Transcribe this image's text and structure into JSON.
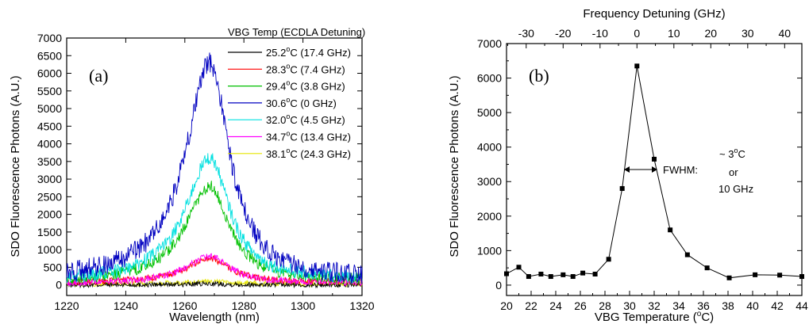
{
  "chart_data": [
    {
      "type": "line",
      "panel_label": "(a)",
      "xlabel": "Wavelength (nm)",
      "ylabel": "SDO Fluorescence Photons (A.U.)",
      "xlim": [
        1220,
        1320
      ],
      "ylim": [
        -300,
        7000
      ],
      "xticks": [
        "1220",
        "1240",
        "1260",
        "1280",
        "1300",
        "1320"
      ],
      "yticks": [
        "0",
        "500",
        "1000",
        "1500",
        "2000",
        "2500",
        "3000",
        "3500",
        "4000",
        "4500",
        "5000",
        "5500",
        "6000",
        "6500",
        "7000"
      ],
      "legend_title": "VBG Temp (ECDLA Detuning)",
      "legend_placement": "top-right",
      "grid": false,
      "series": [
        {
          "name": "25.2°C (17.4 GHz)",
          "temp": "25.2",
          "detuning": " (17.4 GHz)",
          "color": "#000000",
          "x": [
            1220,
            1268.5,
            1320
          ],
          "y": [
            0,
            30,
            0
          ]
        },
        {
          "name": "28.3°C (7.4 GHz)",
          "temp": "28.3",
          "detuning": " (7.4 GHz)",
          "color": "#ff0000",
          "x": [
            1220,
            1268.5,
            1320
          ],
          "y": [
            50,
            750,
            80
          ]
        },
        {
          "name": "29.4°C (3.8 GHz)",
          "temp": "29.4",
          "detuning": " (3.8 GHz)",
          "color": "#00c000",
          "x": [
            1220,
            1268.5,
            1320
          ],
          "y": [
            60,
            2800,
            100
          ]
        },
        {
          "name": "30.6°C (0 GHz)",
          "temp": "30.6",
          "detuning": " (0 GHz)",
          "color": "#0000c0",
          "x": [
            1220,
            1268.5,
            1320
          ],
          "y": [
            120,
            6300,
            150
          ]
        },
        {
          "name": "32.0°C (4.5 GHz)",
          "temp": "32.0",
          "detuning": " (4.5 GHz)",
          "color": "#00e0e0",
          "x": [
            1220,
            1268.5,
            1320
          ],
          "y": [
            80,
            3600,
            150
          ]
        },
        {
          "name": "34.7°C (13.4 GHz)",
          "temp": "34.7",
          "detuning": " (13.4 GHz)",
          "color": "#ff00ff",
          "x": [
            1220,
            1268.5,
            1320
          ],
          "y": [
            40,
            800,
            60
          ]
        },
        {
          "name": "38.1°C (24.3 GHz)",
          "temp": "38.1",
          "detuning": " (24.3 GHz)",
          "color": "#e6e600",
          "x": [
            1220,
            1268.5,
            1320
          ],
          "y": [
            20,
            100,
            30
          ]
        }
      ]
    },
    {
      "type": "line",
      "panel_label": "(b)",
      "xlabel": "VBG Temperature (°C)",
      "xlabel_main": "VBG Temperature (",
      "xlabel_sup": "o",
      "xlabel_end": "C)",
      "ylabel": "SDO Fluorescence Photons (A.U.)",
      "top_xlabel": "Frequency Detuning (GHz)",
      "xlim": [
        20,
        44
      ],
      "ylim": [
        -300,
        7000
      ],
      "xticks": [
        "20",
        "22",
        "24",
        "26",
        "28",
        "30",
        "32",
        "34",
        "36",
        "38",
        "40",
        "42",
        "44"
      ],
      "yticks": [
        "0",
        "1000",
        "2000",
        "3000",
        "4000",
        "5000",
        "6000",
        "7000"
      ],
      "top_xticks": [
        "-30",
        "-20",
        "-10",
        "0",
        "10",
        "20",
        "30",
        "40"
      ],
      "grid": false,
      "series": [
        {
          "name": "",
          "color": "#000000",
          "x": [
            20.0,
            21.0,
            21.8,
            22.8,
            23.6,
            24.6,
            25.4,
            26.2,
            27.2,
            28.3,
            29.4,
            30.6,
            32.0,
            33.3,
            34.7,
            36.3,
            38.1,
            40.2,
            42.2,
            44.0
          ],
          "y": [
            330,
            520,
            250,
            320,
            250,
            300,
            250,
            350,
            320,
            750,
            2800,
            6350,
            3650,
            1600,
            880,
            500,
            210,
            300,
            290,
            250
          ]
        }
      ],
      "annotations": {
        "fwhm_label": "FWHM:",
        "width_line1_prefix": "~ 3",
        "width_line1_sup": "o",
        "width_line1_suffix": "C",
        "width_line2": "or",
        "width_line3": "10 GHz"
      }
    }
  ]
}
